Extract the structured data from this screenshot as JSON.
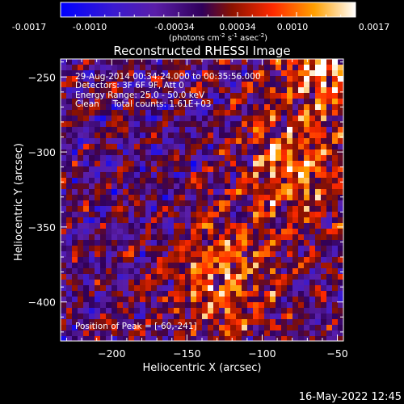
{
  "colorbar": {
    "ticks": [
      "-0.0017",
      "-0.0010",
      "-0.00034",
      "0.00034",
      "0.0010",
      "0.0017"
    ],
    "units_main": "(photons cm",
    "units_exp1": "-2",
    "units_mid": " s",
    "units_exp2": "-1",
    "units_end": " asec",
    "units_exp3": "-2",
    "units_close": ")"
  },
  "plot": {
    "title": "Reconstructed RHESSI Image",
    "info_lines": [
      "29-Aug-2014 00:34:24.000 to 00:35:56.000",
      "Detectors: 3F 6F 9F, Att 0",
      "Energy Range: 25.0 - 50.0 keV",
      "Clean     Total counts: 1.61E+03"
    ],
    "peak_label": "Position of Peak = [-60,-241]"
  },
  "timestamp": "16-May-2022 12:45",
  "chart_data": {
    "type": "heatmap",
    "title": "Reconstructed RHESSI Image",
    "xlabel": "Heliocentric X (arcsec)",
    "ylabel": "Heliocentric Y (arcsec)",
    "xlim": [
      -234,
      -46
    ],
    "ylim": [
      -426,
      -238
    ],
    "x_ticks": [
      -200,
      -150,
      -100,
      -50
    ],
    "y_ticks": [
      -400,
      -350,
      -300,
      -250
    ],
    "colorbar_range": [
      -0.0017,
      0.0017
    ],
    "colorbar_label": "(photons cm-2 s-1 asec-2)",
    "colormap": [
      "#0000ff",
      "#3a1ad0",
      "#5a1ea8",
      "#30005a",
      "#8a1200",
      "#ff2a00",
      "#ffa000",
      "#ffffff"
    ],
    "peak_position": [
      -60,
      -241
    ],
    "sources": [
      {
        "x": -60,
        "y": -241
      },
      {
        "x": -80,
        "y": -312
      },
      {
        "x": -125,
        "y": -386
      }
    ]
  }
}
